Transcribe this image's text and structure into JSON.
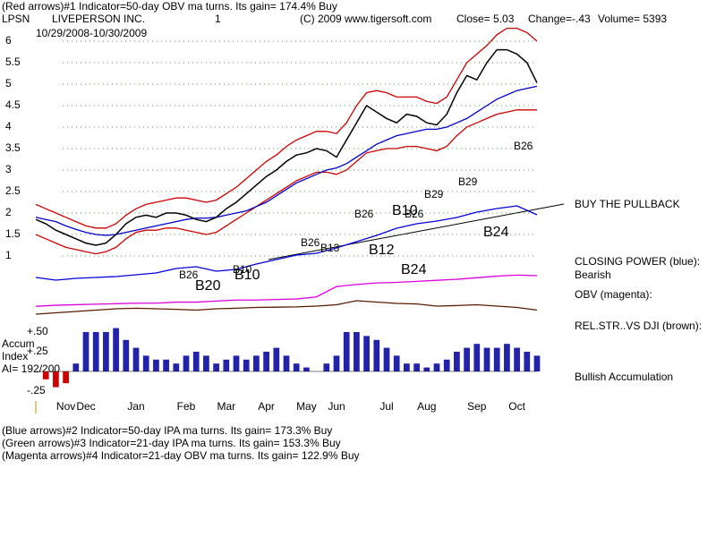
{
  "header": {
    "line1": "(Red arrows)#1 Indicator=50-day OBV ma turns. Its gain= 174.4% Buy",
    "ticker": "LPSN",
    "company": "LIVEPERSON INC.",
    "number": "1",
    "copyright": "(C) 2009 www.tigersoft.com",
    "close": "Close=  5.03",
    "change": "Change=-.43",
    "volume": "Volume= 5393",
    "dates": "10/29/2008-10/30/2009"
  },
  "labels": {
    "pullback": "BUY THE PULLBACK",
    "closing_power": "CLOSING POWER (blue):",
    "bearish": "Bearish",
    "obv": "OBV (magenta):",
    "relstr": "REL.STR..VS DJI (brown):",
    "bullish": "Bullish Accumulation",
    "accum": "Accum",
    "index": "Index",
    "ai": "AI= 192/200"
  },
  "annotations": [
    "B26",
    "B20",
    "B10",
    "B26",
    "B13",
    "B26",
    "B10",
    "B12",
    "B24",
    "B10",
    "B26",
    "B29",
    "B29",
    "B26",
    "B24"
  ],
  "footer": [
    "(Blue arrows)#2 Indicator=50-day IPA ma turns. Its gain= 173.3% Buy",
    "(Green arrows)#3 Indicator=21-day IPA ma turns. Its gain= 153.3% Buy",
    "(Magenta arrows)#4 Indicator=21-day OBV ma turns. Its gain= 122.9% Buy"
  ],
  "chart_data": [
    {
      "type": "line",
      "xlim": [
        0,
        50
      ],
      "ylim": [
        1,
        6.3
      ],
      "yticks": [
        1,
        1.5,
        2,
        2.5,
        3,
        3.5,
        4,
        4.5,
        5,
        5.5,
        6
      ],
      "grid": true,
      "xticks": [
        {
          "value": 3,
          "label": "Nov"
        },
        {
          "value": 5,
          "label": "Dec"
        },
        {
          "value": 10,
          "label": "Jan"
        },
        {
          "value": 15,
          "label": "Feb"
        },
        {
          "value": 19,
          "label": "Mar"
        },
        {
          "value": 23,
          "label": "Apr"
        },
        {
          "value": 27,
          "label": "May"
        },
        {
          "value": 30,
          "label": "Jun"
        },
        {
          "value": 35,
          "label": "Jul"
        },
        {
          "value": 39,
          "label": "Aug"
        },
        {
          "value": 44,
          "label": "Sep"
        },
        {
          "value": 48,
          "label": "Oct"
        }
      ],
      "series": [
        {
          "color": "#cc0000",
          "values": [
            2.2,
            2.1,
            2.0,
            1.9,
            1.8,
            1.7,
            1.65,
            1.65,
            1.75,
            1.95,
            2.1,
            2.2,
            2.25,
            2.3,
            2.35,
            2.35,
            2.3,
            2.25,
            2.3,
            2.45,
            2.6,
            2.8,
            3.0,
            3.2,
            3.35,
            3.55,
            3.7,
            3.8,
            3.9,
            3.9,
            3.85,
            4.1,
            4.5,
            4.8,
            4.85,
            4.8,
            4.7,
            4.7,
            4.7,
            4.6,
            4.55,
            4.7,
            5.1,
            5.5,
            5.7,
            5.9,
            6.15,
            6.3,
            6.3,
            6.2,
            6.0
          ]
        },
        {
          "color": "#cc0000",
          "values": [
            1.5,
            1.4,
            1.3,
            1.2,
            1.15,
            1.1,
            1.05,
            1.1,
            1.2,
            1.4,
            1.55,
            1.6,
            1.6,
            1.65,
            1.65,
            1.6,
            1.55,
            1.5,
            1.55,
            1.7,
            1.85,
            2.0,
            2.15,
            2.3,
            2.45,
            2.6,
            2.75,
            2.85,
            2.95,
            2.95,
            2.9,
            3.0,
            3.2,
            3.4,
            3.45,
            3.5,
            3.5,
            3.55,
            3.55,
            3.5,
            3.45,
            3.55,
            3.8,
            4.0,
            4.1,
            4.2,
            4.3,
            4.35,
            4.4,
            4.4,
            4.4
          ]
        },
        {
          "color": "#0000cc",
          "values": [
            1.9,
            1.85,
            1.8,
            1.7,
            1.62,
            1.55,
            1.5,
            1.48,
            1.5,
            1.55,
            1.6,
            1.65,
            1.7,
            1.75,
            1.8,
            1.85,
            1.88,
            1.88,
            1.9,
            1.95,
            2.0,
            2.05,
            2.15,
            2.25,
            2.4,
            2.55,
            2.7,
            2.8,
            2.9,
            3.0,
            3.05,
            3.15,
            3.3,
            3.45,
            3.6,
            3.7,
            3.8,
            3.85,
            3.9,
            3.95,
            3.95,
            4.0,
            4.1,
            4.2,
            4.35,
            4.5,
            4.65,
            4.75,
            4.85,
            4.9,
            4.95
          ]
        },
        {
          "color": "#000000",
          "values": [
            1.85,
            1.75,
            1.6,
            1.5,
            1.4,
            1.3,
            1.25,
            1.3,
            1.5,
            1.75,
            1.9,
            1.95,
            1.9,
            2.0,
            2.0,
            1.95,
            1.85,
            1.8,
            1.9,
            2.1,
            2.25,
            2.45,
            2.65,
            2.85,
            3.0,
            3.2,
            3.35,
            3.4,
            3.5,
            3.45,
            3.3,
            3.7,
            4.1,
            4.5,
            4.35,
            4.2,
            4.1,
            4.3,
            4.25,
            4.1,
            4.05,
            4.3,
            4.8,
            5.2,
            5.1,
            5.5,
            5.8,
            5.8,
            5.7,
            5.5,
            5.03
          ]
        }
      ]
    },
    {
      "type": "line",
      "xlim": [
        0,
        25
      ],
      "ylim": [
        0,
        100
      ],
      "series": [
        {
          "name": "CLOSING POWER (blue):",
          "color": "#0000dd",
          "values": [
            15,
            12,
            14,
            15,
            16,
            18,
            20,
            25,
            27,
            22,
            24,
            30,
            35,
            40,
            42,
            48,
            55,
            62,
            70,
            75,
            78,
            82,
            88,
            92,
            95,
            85
          ]
        }
      ]
    },
    {
      "type": "line",
      "xlim": [
        0,
        25
      ],
      "ylim": [
        0,
        100
      ],
      "series": [
        {
          "name": "OBV (magenta):",
          "color": "#dd00dd",
          "values": [
            10,
            12,
            13,
            14,
            15,
            16,
            16,
            18,
            18,
            20,
            22,
            22,
            23,
            24,
            28,
            48,
            52,
            55,
            56,
            58,
            60,
            62,
            65,
            68,
            70,
            69
          ]
        }
      ]
    },
    {
      "type": "line",
      "xlim": [
        0,
        25
      ],
      "ylim": [
        0,
        100
      ],
      "series": [
        {
          "name": "REL.STR..VS DJI (brown):",
          "color": "#5a1a00",
          "values": [
            30,
            35,
            40,
            45,
            50,
            52,
            50,
            48,
            45,
            50,
            52,
            55,
            56,
            57,
            60,
            65,
            80,
            75,
            70,
            68,
            60,
            62,
            65,
            60,
            55,
            45
          ]
        }
      ]
    },
    {
      "type": "bar",
      "xlim": [
        0,
        50
      ],
      "ylim": [
        -0.3,
        0.55
      ],
      "color": "#2222aa",
      "yticks": [
        {
          "value": 0.5,
          "label": "+.50"
        },
        {
          "value": 0.25,
          "label": "+.25"
        },
        {
          "value": -0.25,
          "label": "-.25"
        }
      ],
      "values": [
        0.0,
        -0.1,
        -0.2,
        -0.15,
        0.1,
        0.5,
        0.5,
        0.5,
        0.55,
        0.4,
        0.3,
        0.2,
        0.15,
        0.15,
        0.1,
        0.2,
        0.25,
        0.2,
        0.1,
        0.15,
        0.2,
        0.15,
        0.2,
        0.25,
        0.3,
        0.2,
        0.1,
        0.05,
        0.0,
        0.1,
        0.2,
        0.5,
        0.5,
        0.45,
        0.4,
        0.3,
        0.2,
        0.1,
        0.1,
        0.05,
        0.1,
        0.15,
        0.25,
        0.3,
        0.35,
        0.3,
        0.3,
        0.35,
        0.3,
        0.25,
        0.2
      ]
    }
  ]
}
